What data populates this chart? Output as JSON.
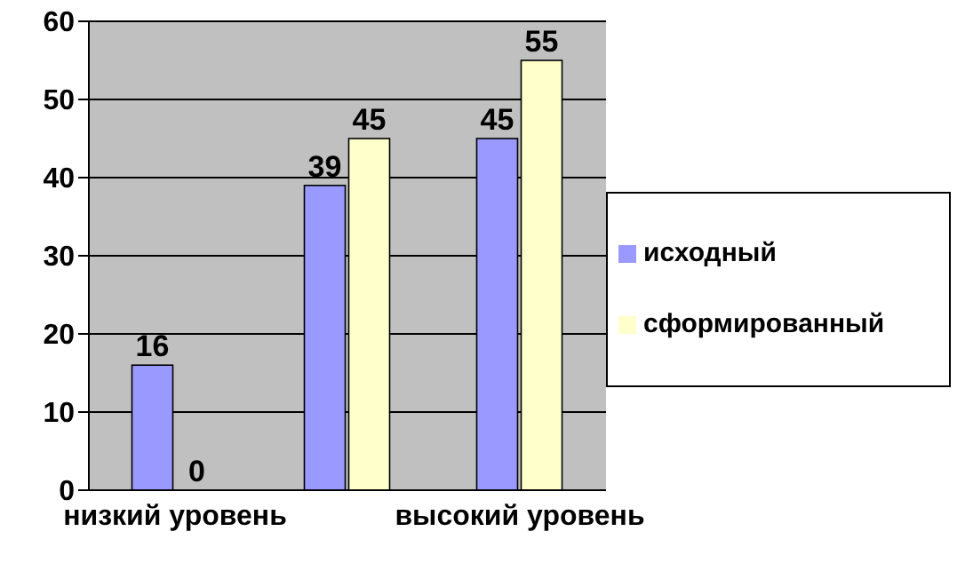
{
  "chart_data": {
    "type": "bar",
    "categories": [
      "низкий уровень",
      null,
      "высокий уровень"
    ],
    "series": [
      {
        "name": "исходный",
        "color": "#9999ff",
        "values": [
          16,
          39,
          45
        ]
      },
      {
        "name": "сформированный",
        "color": "#ffffcc",
        "values": [
          0,
          45,
          55
        ]
      }
    ],
    "ylim": [
      0,
      60
    ],
    "yticks": [
      0,
      10,
      20,
      30,
      40,
      50,
      60
    ],
    "grid": "y",
    "legend": "right",
    "data_labels": true
  }
}
